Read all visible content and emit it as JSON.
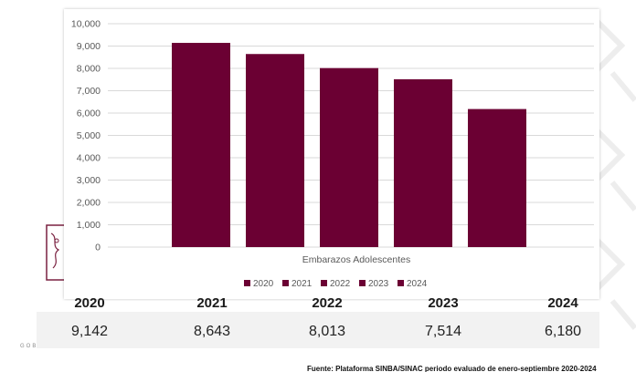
{
  "colors": {
    "bar": "#6b0033",
    "grid": "#d9d9d9",
    "axis_text": "#595959"
  },
  "chart_data": {
    "type": "bar",
    "xlabel": "Embarazos Adolescentes",
    "ylim": [
      0,
      10000
    ],
    "yticks": [
      "0",
      "1,000",
      "2,000",
      "3,000",
      "4,000",
      "5,000",
      "6,000",
      "7,000",
      "8,000",
      "9,000",
      "10,000"
    ],
    "legend_position": "bottom",
    "series": [
      {
        "name": "2020",
        "values": [
          9142
        ]
      },
      {
        "name": "2021",
        "values": [
          8643
        ]
      },
      {
        "name": "2022",
        "values": [
          8013
        ]
      },
      {
        "name": "2023",
        "values": [
          7514
        ]
      },
      {
        "name": "2024",
        "values": [
          6180
        ]
      }
    ]
  },
  "summary": {
    "columns": [
      {
        "year": "2020",
        "value": "9,142"
      },
      {
        "year": "2021",
        "value": "8,643"
      },
      {
        "year": "2022",
        "value": "8,013"
      },
      {
        "year": "2023",
        "value": "7,514"
      },
      {
        "year": "2024",
        "value": "6,180"
      }
    ]
  },
  "footer": {
    "gov_text": "GOB",
    "source": "Fuente: Plataforma SINBA/SINAC periodo evaluado de enero-septiembre 2020-2024"
  }
}
